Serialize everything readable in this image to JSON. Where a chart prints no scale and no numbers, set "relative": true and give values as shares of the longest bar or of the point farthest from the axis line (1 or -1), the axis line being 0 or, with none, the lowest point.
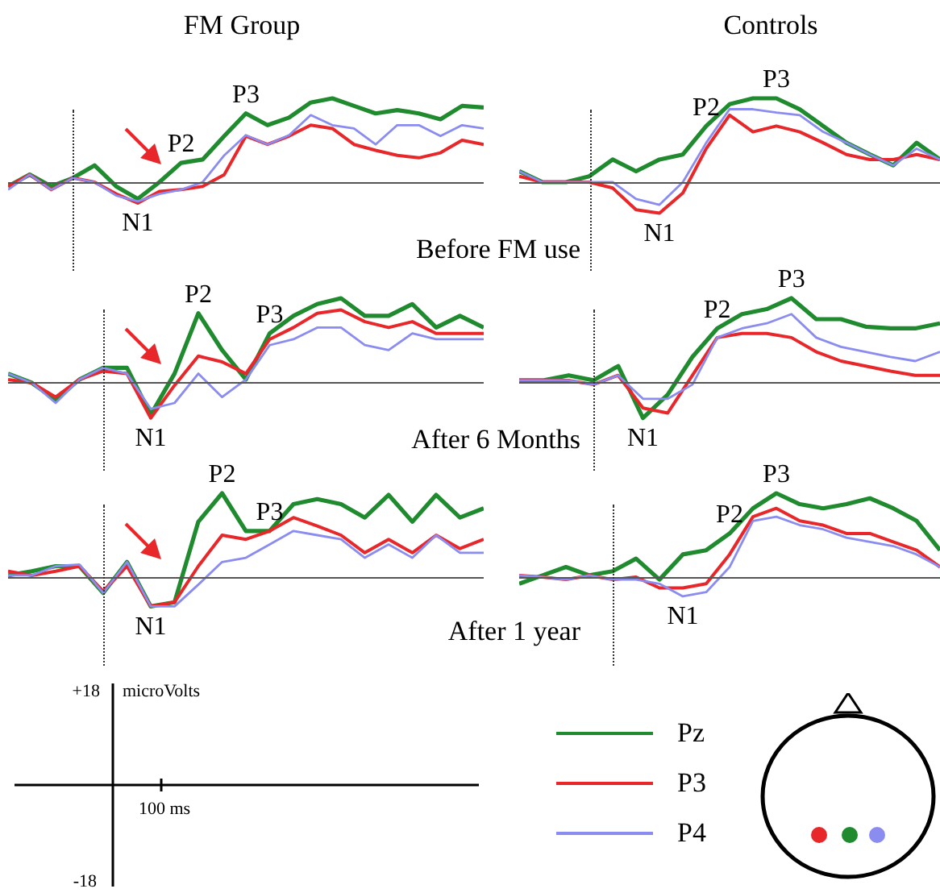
{
  "chart_data": [
    {
      "type": "line",
      "title": "FM Group",
      "relative": true,
      "tick_labels": false,
      "legend": "bottom",
      "categories": [
        null,
        null,
        null,
        null,
        null,
        null,
        null,
        null,
        null,
        null,
        null,
        null,
        null,
        null,
        null,
        null,
        null,
        null,
        null,
        null,
        null,
        null,
        null
      ],
      "series": [
        {
          "name": "Pz",
          "color": "#1f8a2e",
          "values": [
            -0.05,
            0.09,
            -0.05,
            0.05,
            0.2,
            -0.05,
            -0.2,
            0,
            0.23,
            0.27,
            0.55,
            0.82,
            0.68,
            0.77,
            0.95,
            1,
            0.91,
            0.82,
            0.86,
            0.82,
            0.75,
            0.91,
            0.89
          ]
        },
        {
          "name": "P3",
          "color": "#e8272b",
          "values": [
            -0.05,
            0.09,
            -0.09,
            0.05,
            0,
            -0.14,
            -0.25,
            -0.11,
            -0.09,
            -0.05,
            0.09,
            0.55,
            0.45,
            0.55,
            0.68,
            0.64,
            0.45,
            0.38,
            0.32,
            0.29,
            0.35,
            0.5,
            0.45
          ]
        },
        {
          "name": "P4",
          "color": "#8a8cf0",
          "values": [
            -0.09,
            0.09,
            -0.09,
            0.05,
            0,
            -0.16,
            -0.23,
            -0.14,
            -0.09,
            0,
            0.32,
            0.56,
            0.45,
            0.56,
            0.8,
            0.68,
            0.64,
            0.45,
            0.68,
            0.68,
            0.55,
            0.68,
            0.64
          ]
        }
      ],
      "annotations": [
        "N1",
        "P2",
        "P3",
        "Before FM use"
      ]
    },
    {
      "type": "line",
      "title": "Controls",
      "relative": true,
      "tick_labels": false,
      "categories": [
        null,
        null,
        null,
        null,
        null,
        null,
        null,
        null,
        null,
        null,
        null,
        null,
        null,
        null,
        null,
        null,
        null,
        null,
        null
      ],
      "series": [
        {
          "color": "#1f8a2e",
          "values": [
            0.13,
            0,
            0,
            0.07,
            0.27,
            0.13,
            0.27,
            0.33,
            0.67,
            0.93,
            1,
            1,
            0.87,
            0.67,
            0.47,
            0.33,
            0.2,
            0.47,
            0.27
          ]
        },
        {
          "color": "#e8272b",
          "values": [
            0.07,
            0,
            0,
            0,
            -0.07,
            -0.33,
            -0.37,
            -0.13,
            0.4,
            0.8,
            0.6,
            0.67,
            0.6,
            0.47,
            0.33,
            0.27,
            0.27,
            0.33,
            0.27
          ]
        },
        {
          "color": "#8a8cf0",
          "values": [
            0.13,
            0,
            0,
            0,
            0,
            -0.2,
            -0.27,
            0,
            0.47,
            0.87,
            0.87,
            0.83,
            0.8,
            0.6,
            0.47,
            0.33,
            0.2,
            0.4,
            0.27
          ]
        }
      ],
      "annotations": [
        "N1",
        "P2",
        "P3"
      ]
    },
    {
      "type": "line",
      "relative": true,
      "tick_labels": false,
      "categories": [
        null,
        null,
        null,
        null,
        null,
        null,
        null,
        null,
        null,
        null,
        null,
        null,
        null,
        null,
        null,
        null,
        null,
        null,
        null,
        null,
        null
      ],
      "series": [
        {
          "color": "#1f8a2e",
          "values": [
            0.1,
            -0.01,
            -0.21,
            0.03,
            0.17,
            0.17,
            -0.39,
            0.1,
            0.82,
            0.38,
            0.03,
            0.58,
            0.79,
            0.93,
            1,
            0.79,
            0.79,
            0.93,
            0.65,
            0.79,
            0.65
          ]
        },
        {
          "color": "#e8272b",
          "values": [
            0.03,
            -0.01,
            -0.18,
            0.03,
            0.13,
            0.1,
            -0.43,
            -0.04,
            0.31,
            0.24,
            0.1,
            0.51,
            0.65,
            0.82,
            0.86,
            0.72,
            0.65,
            0.72,
            0.58,
            0.58,
            0.58
          ]
        },
        {
          "color": "#8a8cf0",
          "values": [
            0.1,
            -0.01,
            -0.25,
            0.03,
            0.17,
            0.1,
            -0.32,
            -0.25,
            0.1,
            -0.18,
            0.03,
            0.44,
            0.51,
            0.65,
            0.65,
            0.44,
            0.38,
            0.58,
            0.51,
            0.51,
            0.51
          ]
        }
      ],
      "annotations": [
        "N1",
        "P2",
        "P3",
        "After 6 Months"
      ]
    },
    {
      "type": "line",
      "relative": true,
      "tick_labels": false,
      "categories": [
        null,
        null,
        null,
        null,
        null,
        null,
        null,
        null,
        null,
        null,
        null,
        null,
        null,
        null,
        null,
        null,
        null,
        null
      ],
      "series": [
        {
          "color": "#1f8a2e",
          "values": [
            0.02,
            0.02,
            0.08,
            0.02,
            0.19,
            -0.43,
            -0.15,
            0.3,
            0.64,
            0.81,
            0.87,
            1,
            0.75,
            0.75,
            0.66,
            0.64,
            0.64,
            0.7
          ]
        },
        {
          "color": "#e8272b",
          "values": [
            0.02,
            0.02,
            0.02,
            -0.03,
            0.08,
            -0.31,
            -0.37,
            0.08,
            0.53,
            0.58,
            0.58,
            0.53,
            0.36,
            0.25,
            0.19,
            0.13,
            0.08,
            0.08
          ]
        },
        {
          "color": "#8a8cf0",
          "values": [
            0.02,
            0.02,
            0.02,
            -0.03,
            0.08,
            -0.2,
            -0.2,
            -0.03,
            0.53,
            0.64,
            0.7,
            0.81,
            0.53,
            0.42,
            0.36,
            0.3,
            0.25,
            0.36
          ]
        }
      ],
      "annotations": [
        "N1",
        "P2",
        "P3"
      ]
    },
    {
      "type": "line",
      "relative": true,
      "tick_labels": false,
      "categories": [
        null,
        null,
        null,
        null,
        null,
        null,
        null,
        null,
        null,
        null,
        null,
        null,
        null,
        null,
        null,
        null,
        null,
        null,
        null,
        null,
        null
      ],
      "series": [
        {
          "color": "#1f8a2e",
          "values": [
            0.02,
            0.07,
            0.13,
            0.13,
            -0.19,
            0.18,
            -0.35,
            -0.3,
            0.66,
            1,
            0.55,
            0.55,
            0.87,
            0.93,
            0.87,
            0.71,
            0.98,
            0.66,
            0.98,
            0.71,
            0.82
          ]
        },
        {
          "color": "#e8272b",
          "values": [
            0.07,
            0.02,
            0.07,
            0.13,
            -0.17,
            0.13,
            -0.35,
            -0.3,
            0.13,
            0.5,
            0.45,
            0.55,
            0.71,
            0.61,
            0.5,
            0.29,
            0.45,
            0.29,
            0.5,
            0.34,
            0.45
          ]
        },
        {
          "color": "#8a8cf0",
          "values": [
            0.02,
            0.02,
            0.13,
            0.15,
            -0.19,
            0.18,
            -0.35,
            -0.35,
            -0.09,
            0.18,
            0.23,
            0.39,
            0.55,
            0.5,
            0.45,
            0.23,
            0.39,
            0.23,
            0.5,
            0.29,
            0.29
          ]
        }
      ],
      "annotations": [
        "N1",
        "P2",
        "P3",
        "After 1 year"
      ]
    },
    {
      "type": "line",
      "relative": true,
      "tick_labels": false,
      "categories": [
        null,
        null,
        null,
        null,
        null,
        null,
        null,
        null,
        null,
        null,
        null,
        null,
        null,
        null,
        null,
        null,
        null,
        null,
        null
      ],
      "series": [
        {
          "color": "#1f8a2e",
          "values": [
            -0.08,
            0.02,
            0.12,
            0.02,
            0.07,
            0.22,
            -0.03,
            0.27,
            0.32,
            0.52,
            0.82,
            1,
            0.87,
            0.82,
            0.87,
            0.94,
            0.82,
            0.67,
            0.32
          ]
        },
        {
          "color": "#e8272b",
          "values": [
            0.02,
            0,
            -0.03,
            0.02,
            -0.03,
            0,
            -0.13,
            -0.13,
            -0.08,
            0.27,
            0.72,
            0.82,
            0.67,
            0.62,
            0.52,
            0.52,
            0.42,
            0.32,
            0.12
          ]
        },
        {
          "color": "#8a8cf0",
          "values": [
            0.02,
            0,
            -0.03,
            0.02,
            -0.03,
            -0.03,
            -0.08,
            -0.23,
            -0.18,
            0.12,
            0.67,
            0.72,
            0.62,
            0.57,
            0.47,
            0.42,
            0.37,
            0.27,
            0.12
          ]
        }
      ],
      "annotations": [
        "N1",
        "P2",
        "P3"
      ]
    },
    {
      "type": "other",
      "annotations": [
        "+18",
        "microVolts",
        "100 ms",
        "-18"
      ]
    }
  ]
}
